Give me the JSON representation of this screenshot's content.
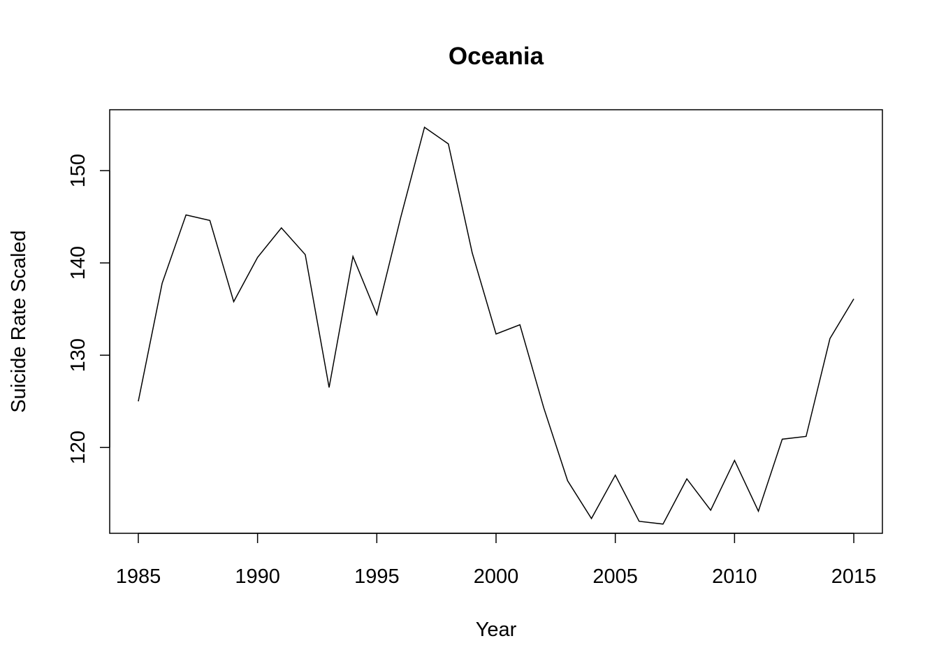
{
  "chart_data": {
    "type": "line",
    "title": "Oceania",
    "xlabel": "Year",
    "ylabel": "Suicide Rate Scaled",
    "x": [
      1985,
      1986,
      1987,
      1988,
      1989,
      1990,
      1991,
      1992,
      1993,
      1994,
      1995,
      1996,
      1997,
      1998,
      1999,
      2000,
      2001,
      2002,
      2003,
      2004,
      2005,
      2006,
      2007,
      2008,
      2009,
      2010,
      2011,
      2012,
      2013,
      2014,
      2015
    ],
    "series": [
      {
        "values": [
          125.0,
          137.8,
          145.2,
          144.6,
          135.8,
          140.6,
          143.8,
          140.9,
          126.5,
          140.7,
          134.4,
          144.9,
          154.7,
          152.9,
          141.1,
          132.3,
          133.3,
          124.3,
          116.4,
          112.3,
          117.0,
          112.0,
          111.7,
          116.6,
          113.2,
          118.6,
          113.1,
          120.9,
          121.2,
          131.8,
          136.1
        ],
        "color": "#000000"
      }
    ],
    "xlim": [
      1983.8,
      2016.2
    ],
    "ylim": [
      110.7,
      156.6
    ],
    "x_ticks": [
      "1985",
      "1990",
      "1995",
      "2000",
      "2005",
      "2010",
      "2015"
    ],
    "y_ticks": [
      "120",
      "130",
      "140",
      "150"
    ],
    "grid": false,
    "legend": "none"
  }
}
